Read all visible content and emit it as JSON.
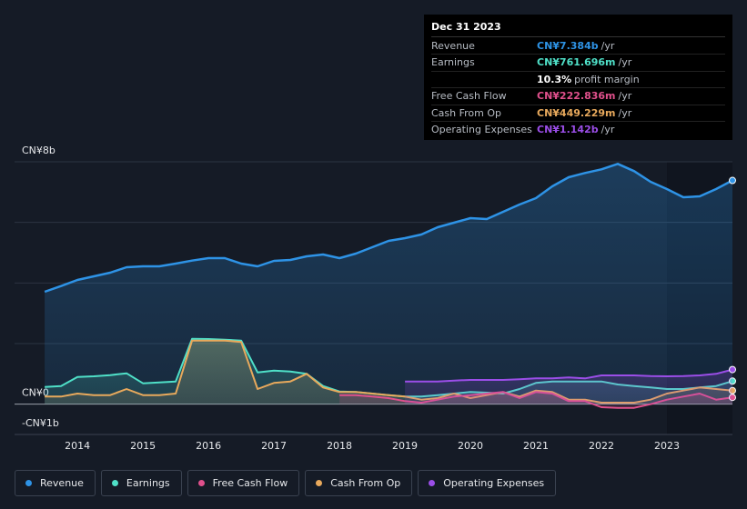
{
  "chart_data": {
    "type": "line",
    "x": [
      2013.5,
      2013.75,
      2014,
      2014.25,
      2014.5,
      2014.75,
      2015,
      2015.25,
      2015.5,
      2015.75,
      2016,
      2016.25,
      2016.5,
      2016.75,
      2017,
      2017.25,
      2017.5,
      2017.75,
      2018,
      2018.25,
      2018.5,
      2018.75,
      2019,
      2019.25,
      2019.5,
      2019.75,
      2020,
      2020.25,
      2020.5,
      2020.75,
      2021,
      2021.25,
      2021.5,
      2021.75,
      2022,
      2022.25,
      2022.5,
      2022.75,
      2023,
      2023.25,
      2023.5,
      2023.75,
      2024
    ],
    "series": [
      {
        "name": "Revenue",
        "color": "#2e93e6",
        "fill": true,
        "values": [
          3.71,
          3.9,
          4.1,
          4.22,
          4.34,
          4.52,
          4.55,
          4.55,
          4.64,
          4.74,
          4.82,
          4.82,
          4.64,
          4.55,
          4.73,
          4.76,
          4.88,
          4.94,
          4.82,
          4.97,
          5.18,
          5.39,
          5.48,
          5.6,
          5.84,
          5.99,
          6.14,
          6.11,
          6.35,
          6.59,
          6.8,
          7.19,
          7.49,
          7.63,
          7.75,
          7.93,
          7.69,
          7.34,
          7.1,
          6.83,
          6.86,
          7.1,
          7.384
        ]
      },
      {
        "name": "Earnings",
        "color": "#4fe0c8",
        "fill": true,
        "values": [
          0.57,
          0.6,
          0.9,
          0.92,
          0.96,
          1.02,
          0.69,
          0.72,
          0.75,
          2.16,
          2.15,
          2.13,
          2.1,
          1.05,
          1.11,
          1.08,
          1.0,
          0.6,
          0.42,
          0.4,
          0.35,
          0.3,
          0.25,
          0.25,
          0.3,
          0.35,
          0.4,
          0.38,
          0.35,
          0.5,
          0.7,
          0.75,
          0.75,
          0.75,
          0.75,
          0.65,
          0.6,
          0.55,
          0.5,
          0.5,
          0.55,
          0.6,
          0.762
        ]
      },
      {
        "name": "Free Cash Flow",
        "color": "#e0508c",
        "fill": true,
        "values": [
          null,
          null,
          null,
          null,
          null,
          null,
          null,
          null,
          null,
          null,
          null,
          null,
          null,
          null,
          null,
          null,
          null,
          null,
          0.3,
          0.3,
          0.25,
          0.2,
          0.1,
          0.05,
          0.15,
          0.25,
          0.3,
          0.35,
          0.4,
          0.2,
          0.4,
          0.35,
          0.1,
          0.1,
          -0.1,
          -0.12,
          -0.12,
          0,
          0.15,
          0.25,
          0.35,
          0.15,
          0.223
        ]
      },
      {
        "name": "Cash From Op",
        "color": "#e8a95c",
        "fill": true,
        "values": [
          0.25,
          0.25,
          0.35,
          0.3,
          0.3,
          0.5,
          0.3,
          0.3,
          0.35,
          2.1,
          2.1,
          2.1,
          2.05,
          0.5,
          0.7,
          0.75,
          1.0,
          0.55,
          0.4,
          0.4,
          0.35,
          0.3,
          0.25,
          0.15,
          0.2,
          0.35,
          0.2,
          0.3,
          0.4,
          0.25,
          0.45,
          0.4,
          0.15,
          0.15,
          0.05,
          0.05,
          0.05,
          0.15,
          0.35,
          0.45,
          0.55,
          0.5,
          0.449
        ]
      },
      {
        "name": "Operating Expenses",
        "color": "#9b4ee8",
        "fill": true,
        "values": [
          null,
          null,
          null,
          null,
          null,
          null,
          null,
          null,
          null,
          null,
          null,
          null,
          null,
          null,
          null,
          null,
          null,
          null,
          null,
          null,
          null,
          null,
          0.75,
          0.75,
          0.75,
          0.78,
          0.8,
          0.8,
          0.8,
          0.82,
          0.85,
          0.85,
          0.88,
          0.85,
          0.95,
          0.95,
          0.95,
          0.93,
          0.92,
          0.93,
          0.95,
          1.0,
          1.142
        ]
      }
    ],
    "xlim": [
      2013.04,
      2024
    ],
    "ylim": [
      -1,
      8
    ],
    "xticks": [
      2014,
      2015,
      2016,
      2017,
      2018,
      2019,
      2020,
      2021,
      2022,
      2023
    ],
    "yticks": [
      {
        "value": 8,
        "label": "CN¥8b"
      },
      {
        "value": 0,
        "label": "CN¥0"
      },
      {
        "value": -1,
        "label": "-CN¥1b"
      }
    ],
    "ygrid": [
      2,
      4,
      6,
      8
    ],
    "highlight_xlim": [
      2023,
      2024
    ]
  },
  "tooltip": {
    "date": "Dec 31 2023",
    "rows": [
      {
        "label": "Revenue",
        "value": "CN¥7.384b",
        "unit": "/yr",
        "color": "#2e93e6"
      },
      {
        "label": "Earnings",
        "value": "CN¥761.696m",
        "unit": "/yr",
        "color": "#4fe0c8"
      },
      {
        "label": "",
        "value": "10.3%",
        "unit": "profit margin",
        "color": "#ffffff"
      },
      {
        "label": "Free Cash Flow",
        "value": "CN¥222.836m",
        "unit": "/yr",
        "color": "#e0508c"
      },
      {
        "label": "Cash From Op",
        "value": "CN¥449.229m",
        "unit": "/yr",
        "color": "#e8a95c"
      },
      {
        "label": "Operating Expenses",
        "value": "CN¥1.142b",
        "unit": "/yr",
        "color": "#9b4ee8"
      }
    ]
  }
}
